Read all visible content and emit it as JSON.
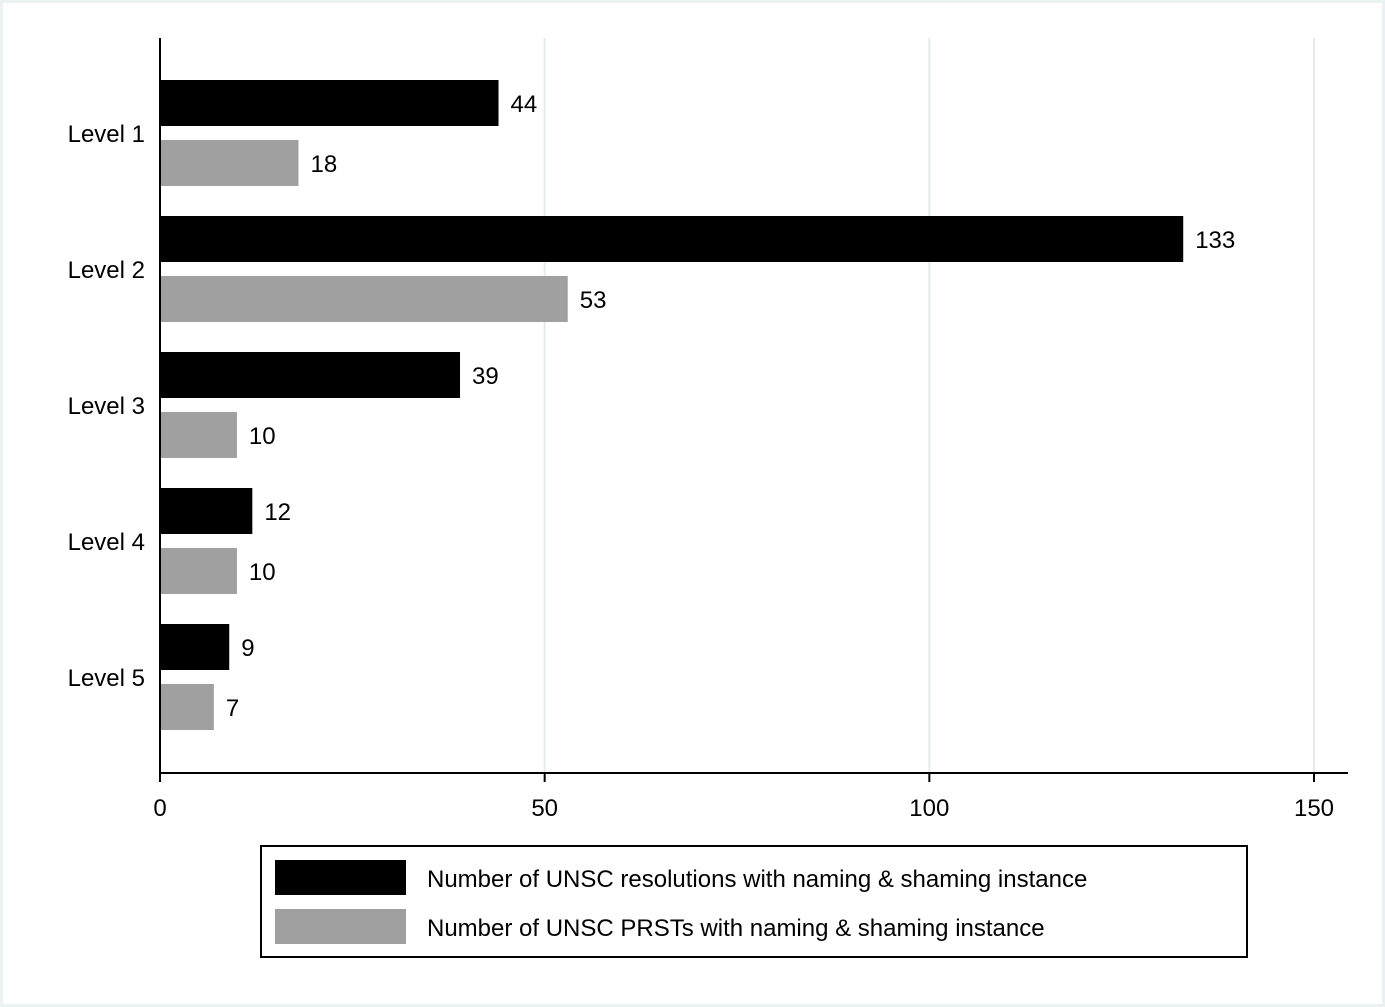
{
  "chart_data": {
    "type": "bar",
    "orientation": "horizontal",
    "categories": [
      "Level 1",
      "Level 2",
      "Level 3",
      "Level 4",
      "Level 5"
    ],
    "series": [
      {
        "name": "Number of UNSC resolutions with naming & shaming instance",
        "color": "#000000",
        "values": [
          44,
          133,
          39,
          12,
          9
        ]
      },
      {
        "name": "Number of UNSC PRSTs with naming & shaming instance",
        "color": "#a0a0a0",
        "values": [
          18,
          53,
          10,
          10,
          7
        ]
      }
    ],
    "xlim": [
      0,
      150
    ],
    "xticks": [
      0,
      50,
      100,
      150
    ],
    "grid": true,
    "legend_position": "bottom",
    "data_labels": true
  }
}
